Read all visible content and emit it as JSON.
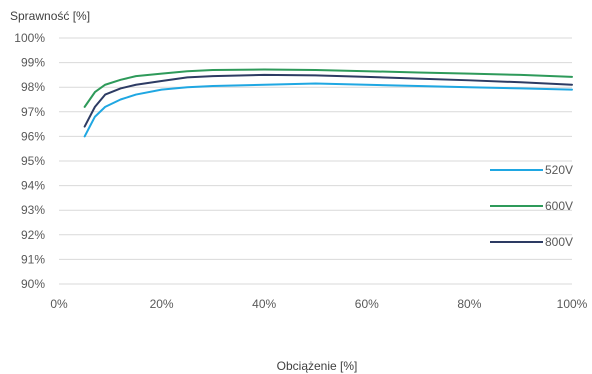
{
  "chart_data": {
    "type": "line",
    "ylabel": "Sprawność [%]",
    "xlabel": "Obciążenie [%]",
    "xlim": [
      0,
      100
    ],
    "ylim": [
      90,
      100
    ],
    "x_ticks": [
      "0%",
      "20%",
      "40%",
      "60%",
      "80%",
      "100%"
    ],
    "y_ticks": [
      "100%",
      "99%",
      "98%",
      "97%",
      "96%",
      "95%",
      "94%",
      "93%",
      "92%",
      "91%",
      "90%"
    ],
    "grid": "horizontal",
    "legend_position": "right",
    "series": [
      {
        "name": "520V",
        "color": "#1fa7e2",
        "points": [
          [
            5,
            96.0
          ],
          [
            7,
            96.8
          ],
          [
            9,
            97.2
          ],
          [
            12,
            97.5
          ],
          [
            15,
            97.7
          ],
          [
            20,
            97.9
          ],
          [
            25,
            98.0
          ],
          [
            30,
            98.05
          ],
          [
            40,
            98.1
          ],
          [
            50,
            98.15
          ],
          [
            60,
            98.1
          ],
          [
            70,
            98.05
          ],
          [
            80,
            98.0
          ],
          [
            90,
            97.95
          ],
          [
            100,
            97.9
          ]
        ]
      },
      {
        "name": "600V",
        "color": "#2e9a5a",
        "points": [
          [
            5,
            97.2
          ],
          [
            7,
            97.8
          ],
          [
            9,
            98.1
          ],
          [
            12,
            98.3
          ],
          [
            15,
            98.45
          ],
          [
            20,
            98.55
          ],
          [
            25,
            98.65
          ],
          [
            30,
            98.7
          ],
          [
            40,
            98.72
          ],
          [
            50,
            98.7
          ],
          [
            60,
            98.65
          ],
          [
            70,
            98.6
          ],
          [
            80,
            98.55
          ],
          [
            90,
            98.5
          ],
          [
            100,
            98.42
          ]
        ]
      },
      {
        "name": "800V",
        "color": "#2d3b63",
        "points": [
          [
            5,
            96.4
          ],
          [
            7,
            97.2
          ],
          [
            9,
            97.7
          ],
          [
            12,
            97.95
          ],
          [
            15,
            98.1
          ],
          [
            20,
            98.25
          ],
          [
            25,
            98.4
          ],
          [
            30,
            98.45
          ],
          [
            40,
            98.5
          ],
          [
            50,
            98.48
          ],
          [
            60,
            98.42
          ],
          [
            70,
            98.35
          ],
          [
            80,
            98.28
          ],
          [
            90,
            98.2
          ],
          [
            100,
            98.1
          ]
        ]
      }
    ]
  }
}
